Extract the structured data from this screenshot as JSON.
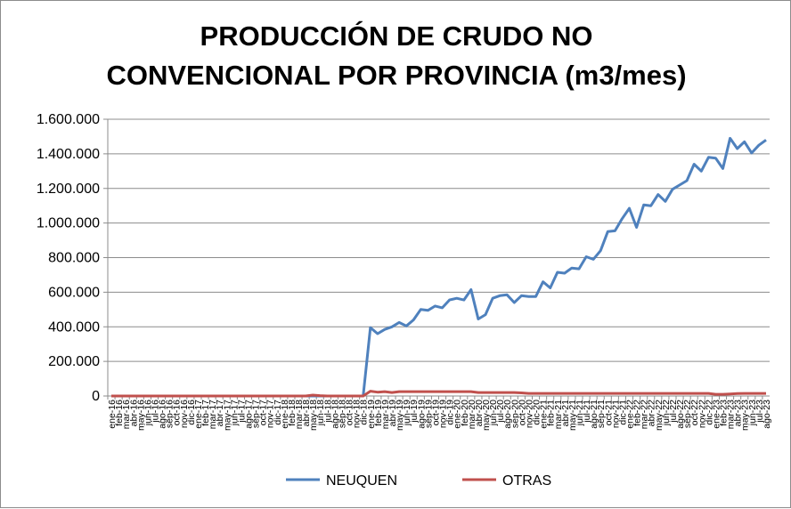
{
  "chart_data": {
    "type": "line",
    "title_lines": [
      "PRODUCCIÓN DE CRUDO NO",
      "CONVENCIONAL POR PROVINCIA (m3/mes)"
    ],
    "xlabel": "",
    "ylabel": "",
    "ylim": [
      0,
      1600000
    ],
    "y_ticks": [
      0,
      200000,
      400000,
      600000,
      800000,
      1000000,
      1200000,
      1400000,
      1600000
    ],
    "y_tick_labels": [
      "0",
      "200.000",
      "400.000",
      "600.000",
      "800.000",
      "1.000.000",
      "1.200.000",
      "1.400.000",
      "1.600.000"
    ],
    "grid": "horizontal",
    "legend_position": "bottom",
    "categories": [
      "ene-16",
      "feb-16",
      "mar-16",
      "abr-16",
      "may-16",
      "jun-16",
      "jul-16",
      "ago-16",
      "sep-16",
      "oct-16",
      "nov-16",
      "dic-16",
      "ene-17",
      "feb-17",
      "mar-17",
      "abr-17",
      "may-17",
      "jun-17",
      "jul-17",
      "ago-17",
      "sep-17",
      "oct-17",
      "nov-17",
      "dic-17",
      "ene-18",
      "feb-18",
      "mar-18",
      "abr-18",
      "may-18",
      "jun-18",
      "jul-18",
      "ago-18",
      "sep-18",
      "oct-18",
      "nov-18",
      "dic-18",
      "ene-19",
      "feb-19",
      "mar-19",
      "abr-19",
      "may-19",
      "jun-19",
      "jul-19",
      "ago-19",
      "sep-19",
      "oct-19",
      "nov-19",
      "dic-19",
      "ene-20",
      "feb-20",
      "mar-20",
      "abr-20",
      "may-20",
      "jun-20",
      "jul-20",
      "ago-20",
      "sep-20",
      "oct-20",
      "nov-20",
      "dic-20",
      "ene-21",
      "feb-21",
      "mar-21",
      "abr-21",
      "may-21",
      "jun-21",
      "jul-21",
      "ago-21",
      "sep-21",
      "oct-21",
      "nov-21",
      "dic-21",
      "ene-22",
      "feb-22",
      "mar-22",
      "abr-22",
      "may-22",
      "jun-22",
      "jul-22",
      "ago-22",
      "sep-22",
      "oct-22",
      "nov-22",
      "dic-22",
      "ene-23",
      "feb-23",
      "mar-23",
      "abr-23",
      "may-23",
      "jun-23",
      "jul-23",
      "ago-23"
    ],
    "series": [
      {
        "name": "NEUQUEN",
        "color": "#4f81bd",
        "values": [
          0,
          0,
          0,
          0,
          0,
          0,
          0,
          0,
          0,
          0,
          0,
          0,
          0,
          0,
          0,
          0,
          0,
          0,
          0,
          0,
          0,
          0,
          0,
          0,
          0,
          0,
          0,
          0,
          0,
          0,
          0,
          0,
          0,
          0,
          0,
          0,
          395000,
          360000,
          385000,
          400000,
          425000,
          405000,
          440000,
          500000,
          495000,
          520000,
          510000,
          555000,
          565000,
          555000,
          615000,
          445000,
          470000,
          565000,
          580000,
          585000,
          540000,
          580000,
          575000,
          575000,
          660000,
          625000,
          715000,
          710000,
          740000,
          735000,
          805000,
          790000,
          840000,
          950000,
          955000,
          1025000,
          1085000,
          975000,
          1105000,
          1100000,
          1165000,
          1125000,
          1195000,
          1220000,
          1245000,
          1340000,
          1300000,
          1380000,
          1375000,
          1315000,
          1490000,
          1430000,
          1470000,
          1405000,
          1450000,
          1480000
        ]
      },
      {
        "name": "OTRAS",
        "color": "#c0504d",
        "values": [
          0,
          0,
          0,
          0,
          0,
          0,
          0,
          0,
          0,
          0,
          0,
          0,
          0,
          0,
          0,
          0,
          0,
          0,
          0,
          0,
          0,
          0,
          0,
          0,
          0,
          0,
          0,
          0,
          5000,
          2000,
          0,
          0,
          0,
          0,
          0,
          0,
          28000,
          22000,
          25000,
          20000,
          25000,
          25000,
          25000,
          25000,
          25000,
          25000,
          25000,
          25000,
          25000,
          25000,
          25000,
          20000,
          20000,
          20000,
          20000,
          20000,
          20000,
          18000,
          15000,
          15000,
          15000,
          15000,
          15000,
          15000,
          15000,
          15000,
          15000,
          15000,
          15000,
          15000,
          15000,
          15000,
          15000,
          15000,
          15000,
          15000,
          15000,
          15000,
          15000,
          15000,
          15000,
          15000,
          15000,
          15000,
          10000,
          10000,
          12000,
          14000,
          15000,
          15000,
          15000,
          15000
        ]
      }
    ]
  }
}
